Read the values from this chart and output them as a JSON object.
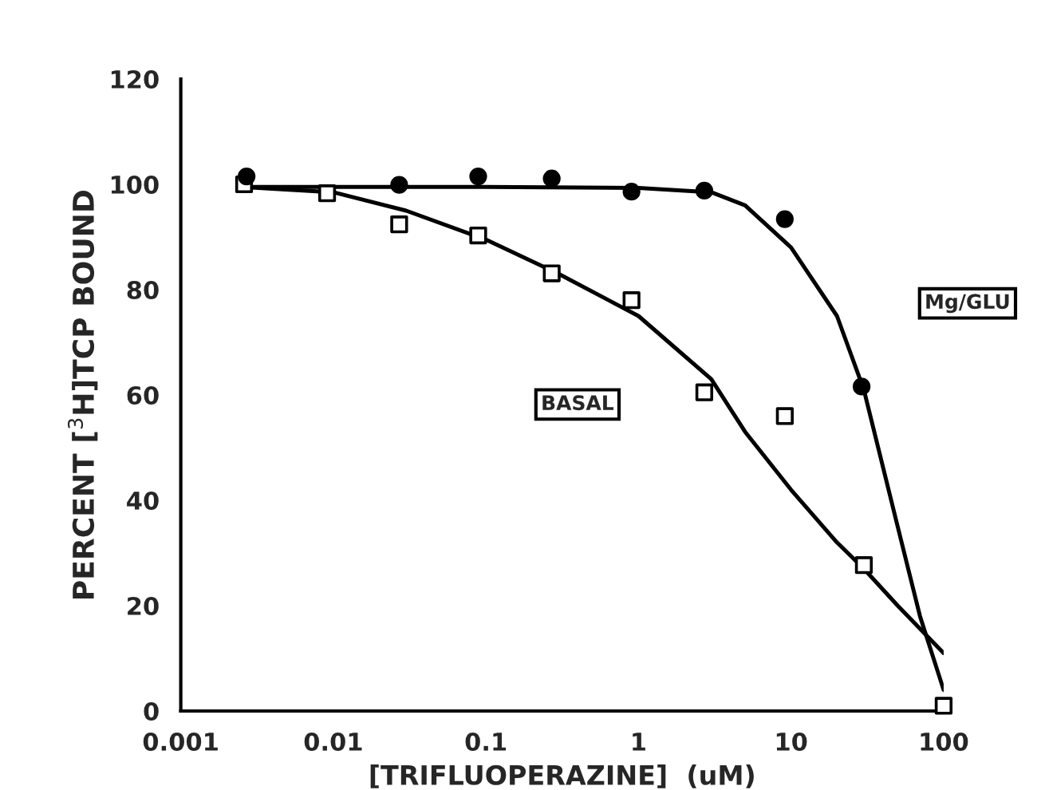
{
  "chart_data": {
    "type": "scatter",
    "xlabel": "[TRIFLUOPERAZINE]  (uM)",
    "ylabel": "PERCENT [$^{3}$H]TCP BOUND",
    "log": "x",
    "xlim": [
      0.001,
      100
    ],
    "xticks": [
      0.001,
      0.01,
      0.1,
      1,
      10,
      100
    ],
    "ylim": [
      0,
      120
    ],
    "yticks": [
      0,
      20,
      40,
      60,
      80,
      100,
      120
    ],
    "grid": false,
    "legend": false,
    "series": [
      {
        "name": "Mg/GLU",
        "marker": "circle",
        "color": "#000000",
        "x": [
          0.0027,
          0.027,
          0.089,
          0.27,
          0.9,
          2.7,
          9.1,
          29
        ],
        "values": [
          101.5,
          99.9,
          101.5,
          101.1,
          98.6,
          98.8,
          93.4,
          61.6
        ]
      },
      {
        "name": "BASAL",
        "marker": "square",
        "color": "#000000",
        "x": [
          0.0026,
          0.0091,
          0.027,
          0.089,
          0.27,
          0.9,
          2.7,
          9.1,
          30,
          100
        ],
        "values": [
          100,
          98.3,
          92.4,
          90.3,
          83.1,
          78,
          60.5,
          56,
          27.7,
          1
        ]
      },
      {
        "type": "line",
        "color": "#000000",
        "x": [
          0.0025,
          0.01,
          0.1,
          1,
          3,
          5,
          10,
          20,
          30,
          50,
          70,
          100
        ],
        "values": [
          99.5,
          99.5,
          99.5,
          99.3,
          98.5,
          96,
          88,
          75,
          61,
          35,
          18,
          4
        ]
      },
      {
        "type": "line",
        "color": "#000000",
        "x": [
          0.0025,
          0.01,
          0.03,
          0.1,
          0.3,
          1,
          3,
          5,
          10,
          20,
          30,
          50,
          100
        ],
        "values": [
          99.5,
          98.5,
          95,
          89.5,
          83,
          75,
          63,
          53,
          42,
          32,
          27,
          20,
          11
        ]
      }
    ]
  }
}
